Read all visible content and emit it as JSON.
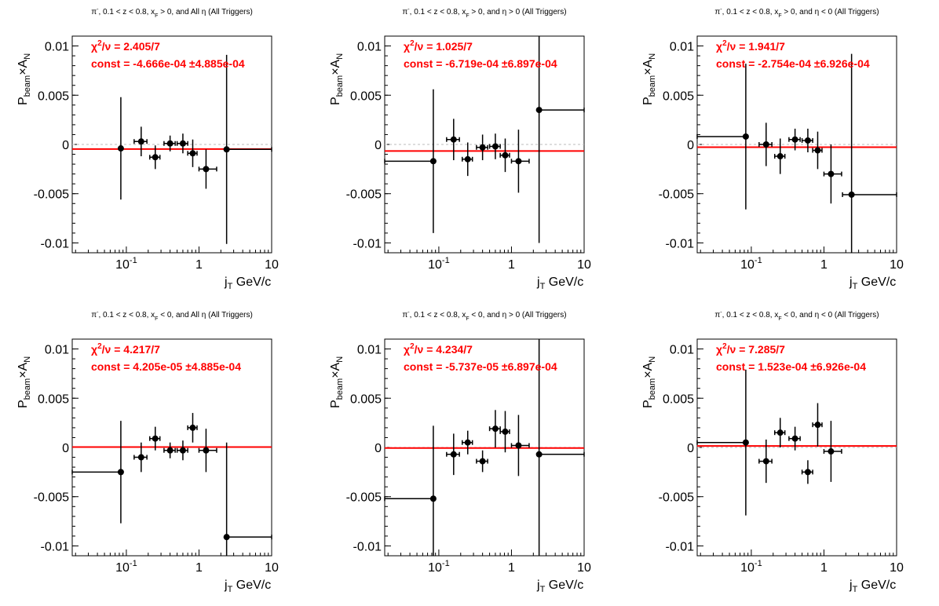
{
  "figure": {
    "axis_label_y": {
      "main": "P",
      "sub1": "beam",
      "times": "×A",
      "sub2": "N"
    },
    "axis_label_x": {
      "main": "j",
      "sub": "T",
      "unit": "GeV/c"
    },
    "x_ticks": [
      {
        "base": "10",
        "exp": "-1",
        "value": 0.1
      },
      {
        "label": "1",
        "value": 1
      },
      {
        "label": "10",
        "value": 10
      }
    ],
    "y_ticks": [
      {
        "label": "0.01",
        "value": 0.01
      },
      {
        "label": "0.005",
        "value": 0.005
      },
      {
        "label": "0",
        "value": 0
      },
      {
        "label": "-0.005",
        "value": -0.005
      },
      {
        "label": "-0.01",
        "value": -0.01
      }
    ],
    "colors": {
      "fit": "#ff0000",
      "points": "#000000",
      "zero_line": "#bbbbbb",
      "stats_text": "#ff0000"
    }
  },
  "chart_data": [
    {
      "type": "scatter",
      "title": {
        "pre": "π",
        "sup": "-",
        "mid": ", 0.1 < z < 0.8, x",
        "sub": "F",
        "post": " > 0, and All   η  (All Triggers)"
      },
      "stats": {
        "chi2_label": "χ",
        "chi2_sup": "2",
        "chi2_rest": "/ν = 2.405/7",
        "const": "const = -4.666e-04   ±4.885e-04"
      },
      "fit_const": -0.0004666,
      "xscale": "log",
      "xlim": [
        0.018,
        10
      ],
      "ylim": [
        -0.011,
        0.011
      ],
      "points": [
        {
          "x": 0.084,
          "y": -0.0004,
          "xerr": [
            0.0,
            0.0
          ],
          "yerr": 0.0052
        },
        {
          "x": 0.16,
          "y": 0.0003,
          "xerr": [
            0.032,
            0.032
          ],
          "yerr": 0.0015
        },
        {
          "x": 0.25,
          "y": -0.0013,
          "xerr": [
            0.04,
            0.04
          ],
          "yerr": 0.0012
        },
        {
          "x": 0.4,
          "y": 0.0001,
          "xerr": [
            0.07,
            0.07
          ],
          "yerr": 0.0008
        },
        {
          "x": 0.6,
          "y": 0.0001,
          "xerr": [
            0.1,
            0.1
          ],
          "yerr": 0.001
        },
        {
          "x": 0.82,
          "y": -0.0009,
          "xerr": [
            0.12,
            0.12
          ],
          "yerr": 0.0014
        },
        {
          "x": 1.25,
          "y": -0.0025,
          "xerr": [
            0.25,
            0.5
          ],
          "yerr": 0.002
        },
        {
          "x": 2.4,
          "y": -0.0005,
          "xerr": [
            0.0,
            7.6
          ],
          "yerr": 0.0096
        }
      ]
    },
    {
      "type": "scatter",
      "title": {
        "pre": "π",
        "sup": "-",
        "mid": ", 0.1 < z < 0.8, x",
        "sub": "F",
        "post": " > 0, and   η > 0 (All Triggers)"
      },
      "stats": {
        "chi2_label": "χ",
        "chi2_sup": "2",
        "chi2_rest": "/ν = 1.025/7",
        "const": "const = -6.719e-04   ±6.897e-04"
      },
      "fit_const": -0.0006719,
      "xscale": "log",
      "xlim": [
        0.018,
        10
      ],
      "ylim": [
        -0.011,
        0.011
      ],
      "points": [
        {
          "x": 0.084,
          "y": -0.0017,
          "xerr": [
            0.066,
            0.0
          ],
          "yerr": 0.0073
        },
        {
          "x": 0.16,
          "y": 0.0005,
          "xerr": [
            0.032,
            0.032
          ],
          "yerr": 0.0021
        },
        {
          "x": 0.25,
          "y": -0.0015,
          "xerr": [
            0.04,
            0.04
          ],
          "yerr": 0.0017
        },
        {
          "x": 0.4,
          "y": -0.0003,
          "xerr": [
            0.07,
            0.07
          ],
          "yerr": 0.0013
        },
        {
          "x": 0.6,
          "y": -0.0002,
          "xerr": [
            0.1,
            0.1
          ],
          "yerr": 0.0013
        },
        {
          "x": 0.82,
          "y": -0.0011,
          "xerr": [
            0.12,
            0.12
          ],
          "yerr": 0.0017
        },
        {
          "x": 1.25,
          "y": -0.0017,
          "xerr": [
            0.25,
            0.5
          ],
          "yerr": 0.0032
        },
        {
          "x": 2.4,
          "y": 0.0035,
          "xerr": [
            0.0,
            7.6
          ],
          "yerr": 0.0135
        }
      ]
    },
    {
      "type": "scatter",
      "title": {
        "pre": "π",
        "sup": "-",
        "mid": ", 0.1 < z < 0.8, x",
        "sub": "F",
        "post": " > 0, and   η < 0 (All Triggers)"
      },
      "stats": {
        "chi2_label": "χ",
        "chi2_sup": "2",
        "chi2_rest": "/ν = 1.941/7",
        "const": "const = -2.754e-04   ±6.926e-04"
      },
      "fit_const": -0.0002754,
      "xscale": "log",
      "xlim": [
        0.018,
        10
      ],
      "ylim": [
        -0.011,
        0.011
      ],
      "points": [
        {
          "x": 0.084,
          "y": 0.0008,
          "xerr": [
            0.066,
            0.0
          ],
          "yerr": 0.0074
        },
        {
          "x": 0.16,
          "y": 0.0,
          "xerr": [
            0.032,
            0.032
          ],
          "yerr": 0.0022
        },
        {
          "x": 0.25,
          "y": -0.0012,
          "xerr": [
            0.04,
            0.04
          ],
          "yerr": 0.0018
        },
        {
          "x": 0.4,
          "y": 0.0005,
          "xerr": [
            0.07,
            0.07
          ],
          "yerr": 0.0011
        },
        {
          "x": 0.6,
          "y": 0.0004,
          "xerr": [
            0.1,
            0.1
          ],
          "yerr": 0.0012
        },
        {
          "x": 0.82,
          "y": -0.0006,
          "xerr": [
            0.12,
            0.12
          ],
          "yerr": 0.0019
        },
        {
          "x": 1.25,
          "y": -0.003,
          "xerr": [
            0.25,
            0.5
          ],
          "yerr": 0.003
        },
        {
          "x": 2.4,
          "y": -0.0051,
          "xerr": [
            0.6,
            7.6
          ],
          "yerr": 0.0143
        }
      ]
    },
    {
      "type": "scatter",
      "title": {
        "pre": "π",
        "sup": "-",
        "mid": ", 0.1 < z < 0.8, x",
        "sub": "F",
        "post": " < 0, and All   η  (All Triggers)"
      },
      "stats": {
        "chi2_label": "χ",
        "chi2_sup": "2",
        "chi2_rest": "/ν = 4.217/7",
        "const": "const = 4.205e-05   ±4.885e-04"
      },
      "fit_const": 4.205e-05,
      "xscale": "log",
      "xlim": [
        0.018,
        10
      ],
      "ylim": [
        -0.011,
        0.011
      ],
      "points": [
        {
          "x": 0.084,
          "y": -0.0025,
          "xerr": [
            0.066,
            0.0
          ],
          "yerr": 0.0052
        },
        {
          "x": 0.16,
          "y": -0.001,
          "xerr": [
            0.032,
            0.032
          ],
          "yerr": 0.0015
        },
        {
          "x": 0.25,
          "y": 0.0009,
          "xerr": [
            0.04,
            0.04
          ],
          "yerr": 0.0012
        },
        {
          "x": 0.4,
          "y": -0.0003,
          "xerr": [
            0.07,
            0.07
          ],
          "yerr": 0.0008
        },
        {
          "x": 0.6,
          "y": -0.0003,
          "xerr": [
            0.1,
            0.1
          ],
          "yerr": 0.001
        },
        {
          "x": 0.82,
          "y": 0.002,
          "xerr": [
            0.12,
            0.12
          ],
          "yerr": 0.0015
        },
        {
          "x": 1.25,
          "y": -0.0003,
          "xerr": [
            0.25,
            0.5
          ],
          "yerr": 0.0022
        },
        {
          "x": 2.4,
          "y": -0.0091,
          "xerr": [
            0.0,
            7.6
          ],
          "yerr": 0.0096
        }
      ]
    },
    {
      "type": "scatter",
      "title": {
        "pre": "π",
        "sup": "-",
        "mid": ", 0.1 < z < 0.8, x",
        "sub": "F",
        "post": " < 0, and   η > 0 (All Triggers)"
      },
      "stats": {
        "chi2_label": "χ",
        "chi2_sup": "2",
        "chi2_rest": "/ν = 4.234/7",
        "const": "const = -5.737e-05   ±6.897e-04"
      },
      "fit_const": -5.737e-05,
      "xscale": "log",
      "xlim": [
        0.018,
        10
      ],
      "ylim": [
        -0.011,
        0.011
      ],
      "points": [
        {
          "x": 0.084,
          "y": -0.0052,
          "xerr": [
            0.066,
            0.0
          ],
          "yerr": 0.0074
        },
        {
          "x": 0.16,
          "y": -0.0007,
          "xerr": [
            0.032,
            0.032
          ],
          "yerr": 0.0021
        },
        {
          "x": 0.25,
          "y": 0.0005,
          "xerr": [
            0.04,
            0.04
          ],
          "yerr": 0.0012
        },
        {
          "x": 0.4,
          "y": -0.0014,
          "xerr": [
            0.07,
            0.07
          ],
          "yerr": 0.0011
        },
        {
          "x": 0.6,
          "y": 0.0019,
          "xerr": [
            0.1,
            0.1
          ],
          "yerr": 0.0019
        },
        {
          "x": 0.82,
          "y": 0.0016,
          "xerr": [
            0.12,
            0.12
          ],
          "yerr": 0.0021
        },
        {
          "x": 1.25,
          "y": 0.0002,
          "xerr": [
            0.25,
            0.5
          ],
          "yerr": 0.0031
        },
        {
          "x": 2.4,
          "y": -0.0007,
          "xerr": [
            0.0,
            7.6
          ],
          "yerr": 0.0125
        }
      ]
    },
    {
      "type": "scatter",
      "title": {
        "pre": "π",
        "sup": "-",
        "mid": ", 0.1 < z < 0.8, x",
        "sub": "F",
        "post": " < 0, and   η < 0 (All Triggers)"
      },
      "stats": {
        "chi2_label": "χ",
        "chi2_sup": "2",
        "chi2_rest": "/ν = 7.285/7",
        "const": "const = 1.523e-04   ±6.926e-04"
      },
      "fit_const": 0.0001523,
      "xscale": "log",
      "xlim": [
        0.018,
        10
      ],
      "ylim": [
        -0.011,
        0.011
      ],
      "points": [
        {
          "x": 0.084,
          "y": 0.0005,
          "xerr": [
            0.066,
            0.0
          ],
          "yerr": 0.0074
        },
        {
          "x": 0.16,
          "y": -0.0014,
          "xerr": [
            0.032,
            0.032
          ],
          "yerr": 0.0022
        },
        {
          "x": 0.25,
          "y": 0.0015,
          "xerr": [
            0.04,
            0.04
          ],
          "yerr": 0.0015
        },
        {
          "x": 0.4,
          "y": 0.0009,
          "xerr": [
            0.07,
            0.07
          ],
          "yerr": 0.0012
        },
        {
          "x": 0.6,
          "y": -0.0025,
          "xerr": [
            0.1,
            0.1
          ],
          "yerr": 0.0012
        },
        {
          "x": 0.82,
          "y": 0.0023,
          "xerr": [
            0.12,
            0.12
          ],
          "yerr": 0.0022
        },
        {
          "x": 1.25,
          "y": -0.0004,
          "xerr": [
            0.25,
            0.5
          ],
          "yerr": 0.0031
        }
      ]
    }
  ]
}
